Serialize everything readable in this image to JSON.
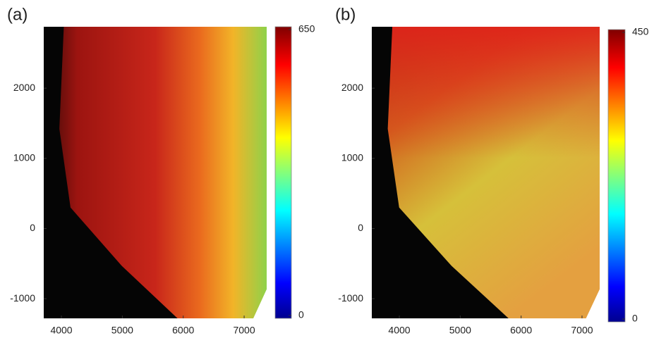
{
  "chart_data": [
    {
      "type": "heatmap",
      "panel_label": "(a)",
      "xlim": [
        3710,
        7370
      ],
      "xticks": [
        4000,
        5000,
        6000,
        7000
      ],
      "ylim": [
        -1280,
        2875
      ],
      "yticks": [
        -1000,
        0,
        1000,
        2000
      ],
      "clim": [
        0,
        650
      ],
      "cticks": [
        0,
        650
      ],
      "colormap": "jet"
    },
    {
      "type": "heatmap",
      "panel_label": "(b)",
      "xlim": [
        3548,
        7290
      ],
      "xticks": [
        4000,
        5000,
        6000,
        7000
      ],
      "ylim": [
        -1280,
        2875
      ],
      "yticks": [
        -1000,
        0,
        1000,
        2000
      ],
      "clim": [
        0,
        450
      ],
      "cticks": [
        0,
        450
      ],
      "colormap": "jet"
    }
  ]
}
